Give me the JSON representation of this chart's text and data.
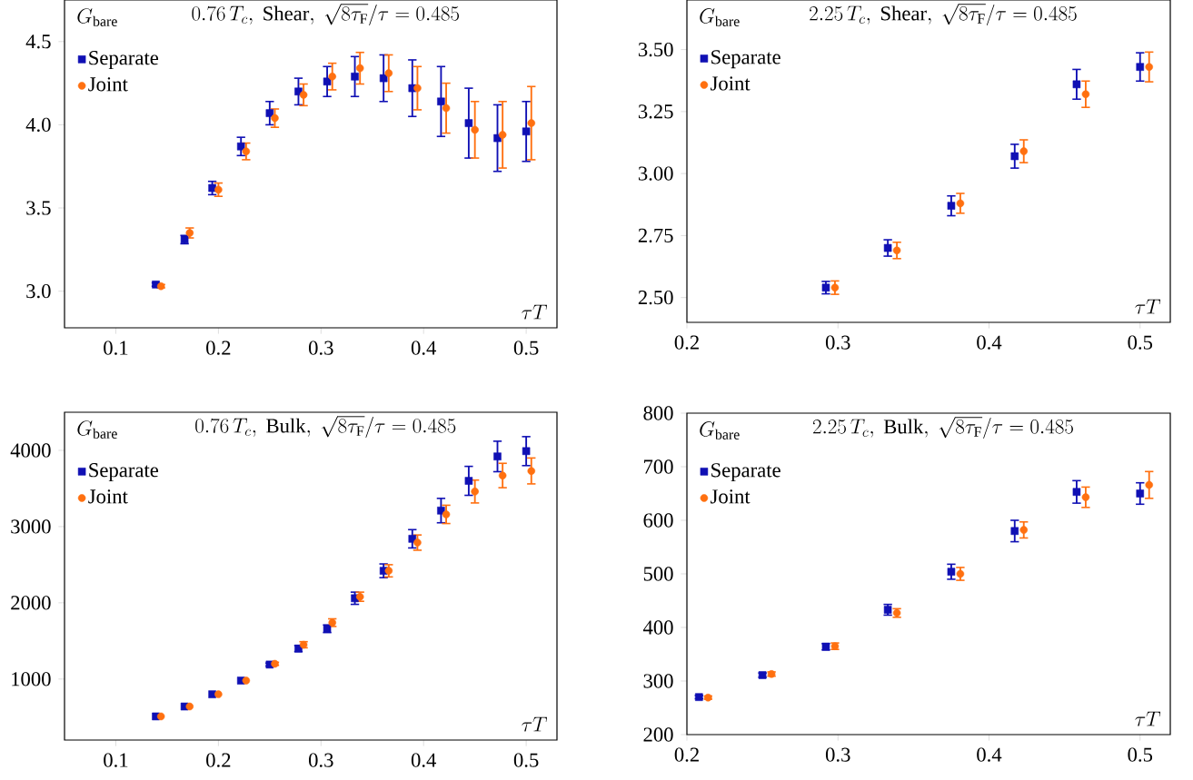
{
  "chart_data": [
    {
      "type": "scatter",
      "title": "0.76\\,T_c,\\ \\mathrm{Shear},\\ \\sqrt{8\\tau_{\\mathrm{F}}}/\\tau = 0.485",
      "ylabel": "G_{\\mathrm{bare}}",
      "xlabel": "\\tau T",
      "xlim": [
        0.05,
        0.53
      ],
      "xticks": [
        0.1,
        0.2,
        0.3,
        0.4,
        0.5
      ],
      "ylim": [
        2.78,
        4.75
      ],
      "yticks": [
        {
          "value": 3,
          "label": "3.0"
        },
        {
          "value": 3.5,
          "label": "3.5"
        },
        {
          "value": 4,
          "label": "4.0"
        },
        {
          "value": 4.5,
          "label": "4.5"
        }
      ],
      "legend": "top left",
      "grid": false,
      "series": [
        {
          "name": "Separate",
          "color": "#1010b4",
          "marker": "square",
          "x": [
            0.139,
            0.167,
            0.194,
            0.222,
            0.25,
            0.278,
            0.306,
            0.333,
            0.361,
            0.389,
            0.417,
            0.444,
            0.472,
            0.5
          ],
          "values": [
            3.04,
            3.31,
            3.62,
            3.87,
            4.07,
            4.2,
            4.26,
            4.29,
            4.28,
            4.22,
            4.14,
            4.01,
            3.92,
            3.96
          ],
          "errors": [
            0.01,
            0.025,
            0.04,
            0.055,
            0.07,
            0.08,
            0.09,
            0.12,
            0.14,
            0.17,
            0.21,
            0.21,
            0.2,
            0.18
          ]
        },
        {
          "name": "Joint",
          "color": "#ff7010",
          "marker": "circle",
          "x": [
            0.144,
            0.172,
            0.2,
            0.227,
            0.255,
            0.283,
            0.311,
            0.338,
            0.366,
            0.394,
            0.422,
            0.45,
            0.477,
            0.505
          ],
          "values": [
            3.03,
            3.35,
            3.61,
            3.84,
            4.04,
            4.18,
            4.29,
            4.34,
            4.31,
            4.22,
            4.1,
            3.97,
            3.94,
            4.01
          ],
          "errors": [
            0.01,
            0.03,
            0.04,
            0.05,
            0.055,
            0.065,
            0.08,
            0.095,
            0.11,
            0.13,
            0.15,
            0.17,
            0.2,
            0.22
          ]
        }
      ]
    },
    {
      "type": "scatter",
      "title": "2.25\\,T_c,\\ \\mathrm{Shear},\\ \\sqrt{8\\tau_{\\mathrm{F}}}/\\tau = 0.485",
      "ylabel": "G_{\\mathrm{bare}}",
      "xlabel": "\\tau T",
      "xlim": [
        0.2,
        0.52
      ],
      "xticks": [
        0.2,
        0.3,
        0.4,
        0.5
      ],
      "ylim": [
        2.4,
        3.7
      ],
      "yticks": [
        {
          "value": 2.5,
          "label": "2.50"
        },
        {
          "value": 2.75,
          "label": "2.75"
        },
        {
          "value": 3,
          "label": "3.00"
        },
        {
          "value": 3.25,
          "label": "3.25"
        },
        {
          "value": 3.5,
          "label": "3.50"
        }
      ],
      "legend": "top left",
      "grid": false,
      "series": [
        {
          "name": "Separate",
          "color": "#1010b4",
          "marker": "square",
          "x": [
            0.292,
            0.333,
            0.375,
            0.417,
            0.458,
            0.5
          ],
          "values": [
            2.54,
            2.7,
            2.87,
            3.07,
            3.36,
            3.43
          ],
          "errors": [
            0.025,
            0.033,
            0.04,
            0.048,
            0.06,
            0.057
          ]
        },
        {
          "name": "Joint",
          "color": "#ff7010",
          "marker": "circle",
          "x": [
            0.298,
            0.339,
            0.381,
            0.423,
            0.464,
            0.506
          ],
          "values": [
            2.54,
            2.69,
            2.88,
            3.09,
            3.32,
            3.43
          ],
          "errors": [
            0.027,
            0.033,
            0.04,
            0.046,
            0.053,
            0.06
          ]
        }
      ]
    },
    {
      "type": "scatter",
      "title": "0.76\\,T_c,\\ \\mathrm{Bulk},\\ \\sqrt{8\\tau_{\\mathrm{F}}}/\\tau = 0.485",
      "ylabel": "G_{\\mathrm{bare}}",
      "xlabel": "\\tau T",
      "xlim": [
        0.05,
        0.53
      ],
      "xticks": [
        0.1,
        0.2,
        0.3,
        0.4,
        0.5
      ],
      "ylim": [
        200,
        4500
      ],
      "yticks": [
        1000,
        2000,
        3000,
        4000
      ],
      "legend": "top left",
      "grid": false,
      "series": [
        {
          "name": "Separate",
          "color": "#1010b4",
          "marker": "square",
          "x": [
            0.139,
            0.167,
            0.194,
            0.222,
            0.25,
            0.278,
            0.306,
            0.333,
            0.361,
            0.389,
            0.417,
            0.444,
            0.472,
            0.5
          ],
          "values": [
            510,
            640,
            800,
            980,
            1190,
            1400,
            1660,
            2060,
            2420,
            2840,
            3210,
            3600,
            3920,
            3990
          ],
          "errors": [
            null,
            null,
            null,
            null,
            20,
            40,
            50,
            80,
            90,
            120,
            160,
            190,
            200,
            190
          ]
        },
        {
          "name": "Joint",
          "color": "#ff7010",
          "marker": "circle",
          "x": [
            0.144,
            0.172,
            0.2,
            0.227,
            0.255,
            0.283,
            0.311,
            0.338,
            0.366,
            0.394,
            0.422,
            0.45,
            0.477,
            0.505
          ],
          "values": [
            510,
            640,
            800,
            980,
            1200,
            1450,
            1740,
            2080,
            2420,
            2790,
            3160,
            3460,
            3670,
            3730
          ],
          "errors": [
            null,
            null,
            null,
            null,
            20,
            40,
            50,
            60,
            80,
            100,
            120,
            150,
            160,
            170
          ]
        }
      ]
    },
    {
      "type": "scatter",
      "title": "2.25\\,T_c,\\ \\mathrm{Bulk},\\ \\sqrt{8\\tau_{\\mathrm{F}}}/\\tau = 0.485",
      "ylabel": "G_{\\mathrm{bare}}",
      "xlabel": "\\tau T",
      "xlim": [
        0.2,
        0.52
      ],
      "xticks": [
        0.2,
        0.3,
        0.4,
        0.5
      ],
      "ylim": [
        200,
        800
      ],
      "yticks": [
        200,
        300,
        400,
        500,
        600,
        700,
        800
      ],
      "legend": "top left",
      "grid": false,
      "series": [
        {
          "name": "Separate",
          "color": "#1010b4",
          "marker": "square",
          "x": [
            0.208,
            0.25,
            0.292,
            0.333,
            0.375,
            0.417,
            0.458,
            0.5
          ],
          "values": [
            270,
            311,
            364,
            433,
            504,
            580,
            653,
            650
          ],
          "errors": [
            3,
            4,
            6,
            10,
            14,
            20,
            21,
            20
          ]
        },
        {
          "name": "Joint",
          "color": "#ff7010",
          "marker": "circle",
          "x": [
            0.214,
            0.256,
            0.298,
            0.339,
            0.381,
            0.423,
            0.464,
            0.506
          ],
          "values": [
            269,
            313,
            365,
            427,
            500,
            582,
            643,
            666
          ],
          "errors": [
            3,
            4,
            6,
            8,
            12,
            15,
            19,
            25
          ]
        }
      ]
    }
  ]
}
